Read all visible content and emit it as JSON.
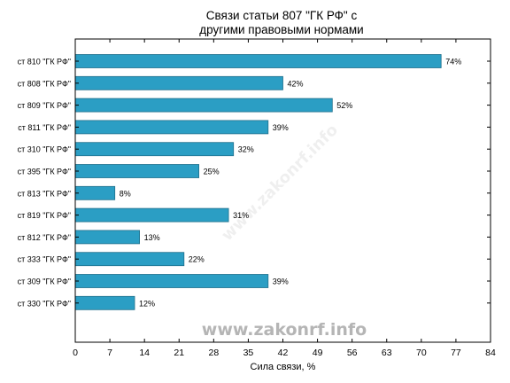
{
  "chart_data": {
    "type": "bar",
    "orientation": "horizontal",
    "title_lines": [
      "Связи статьи 807 \"ГК РФ\" с",
      "другими правовыми нормами"
    ],
    "xlabel": "Сила связи, %",
    "ylabel": "",
    "xlim": [
      0,
      84
    ],
    "xticks": [
      0,
      7,
      14,
      21,
      28,
      35,
      42,
      49,
      56,
      63,
      70,
      77,
      84
    ],
    "categories": [
      "ст 810 \"ГК РФ\"",
      "ст 808 \"ГК РФ\"",
      "ст 809 \"ГК РФ\"",
      "ст 811 \"ГК РФ\"",
      "ст 310 \"ГК РФ\"",
      "ст 395 \"ГК РФ\"",
      "ст 813 \"ГК РФ\"",
      "ст 819 \"ГК РФ\"",
      "ст 812 \"ГК РФ\"",
      "ст 333 \"ГК РФ\"",
      "ст 309 \"ГК РФ\"",
      "ст 330 \"ГК РФ\""
    ],
    "values": [
      74,
      42,
      52,
      39,
      32,
      25,
      8,
      31,
      13,
      22,
      39,
      12
    ],
    "value_labels": [
      "74%",
      "42%",
      "52%",
      "39%",
      "32%",
      "25%",
      "8%",
      "31%",
      "13%",
      "22%",
      "39%",
      "12%"
    ],
    "bar_color": "#2b9ec4",
    "bar_edge_color": "#1f6f8b",
    "grid": false,
    "legend": "none"
  },
  "watermark": {
    "text": "www.zakonrf.info",
    "diagonal_text": "www.zakonrf.info"
  }
}
